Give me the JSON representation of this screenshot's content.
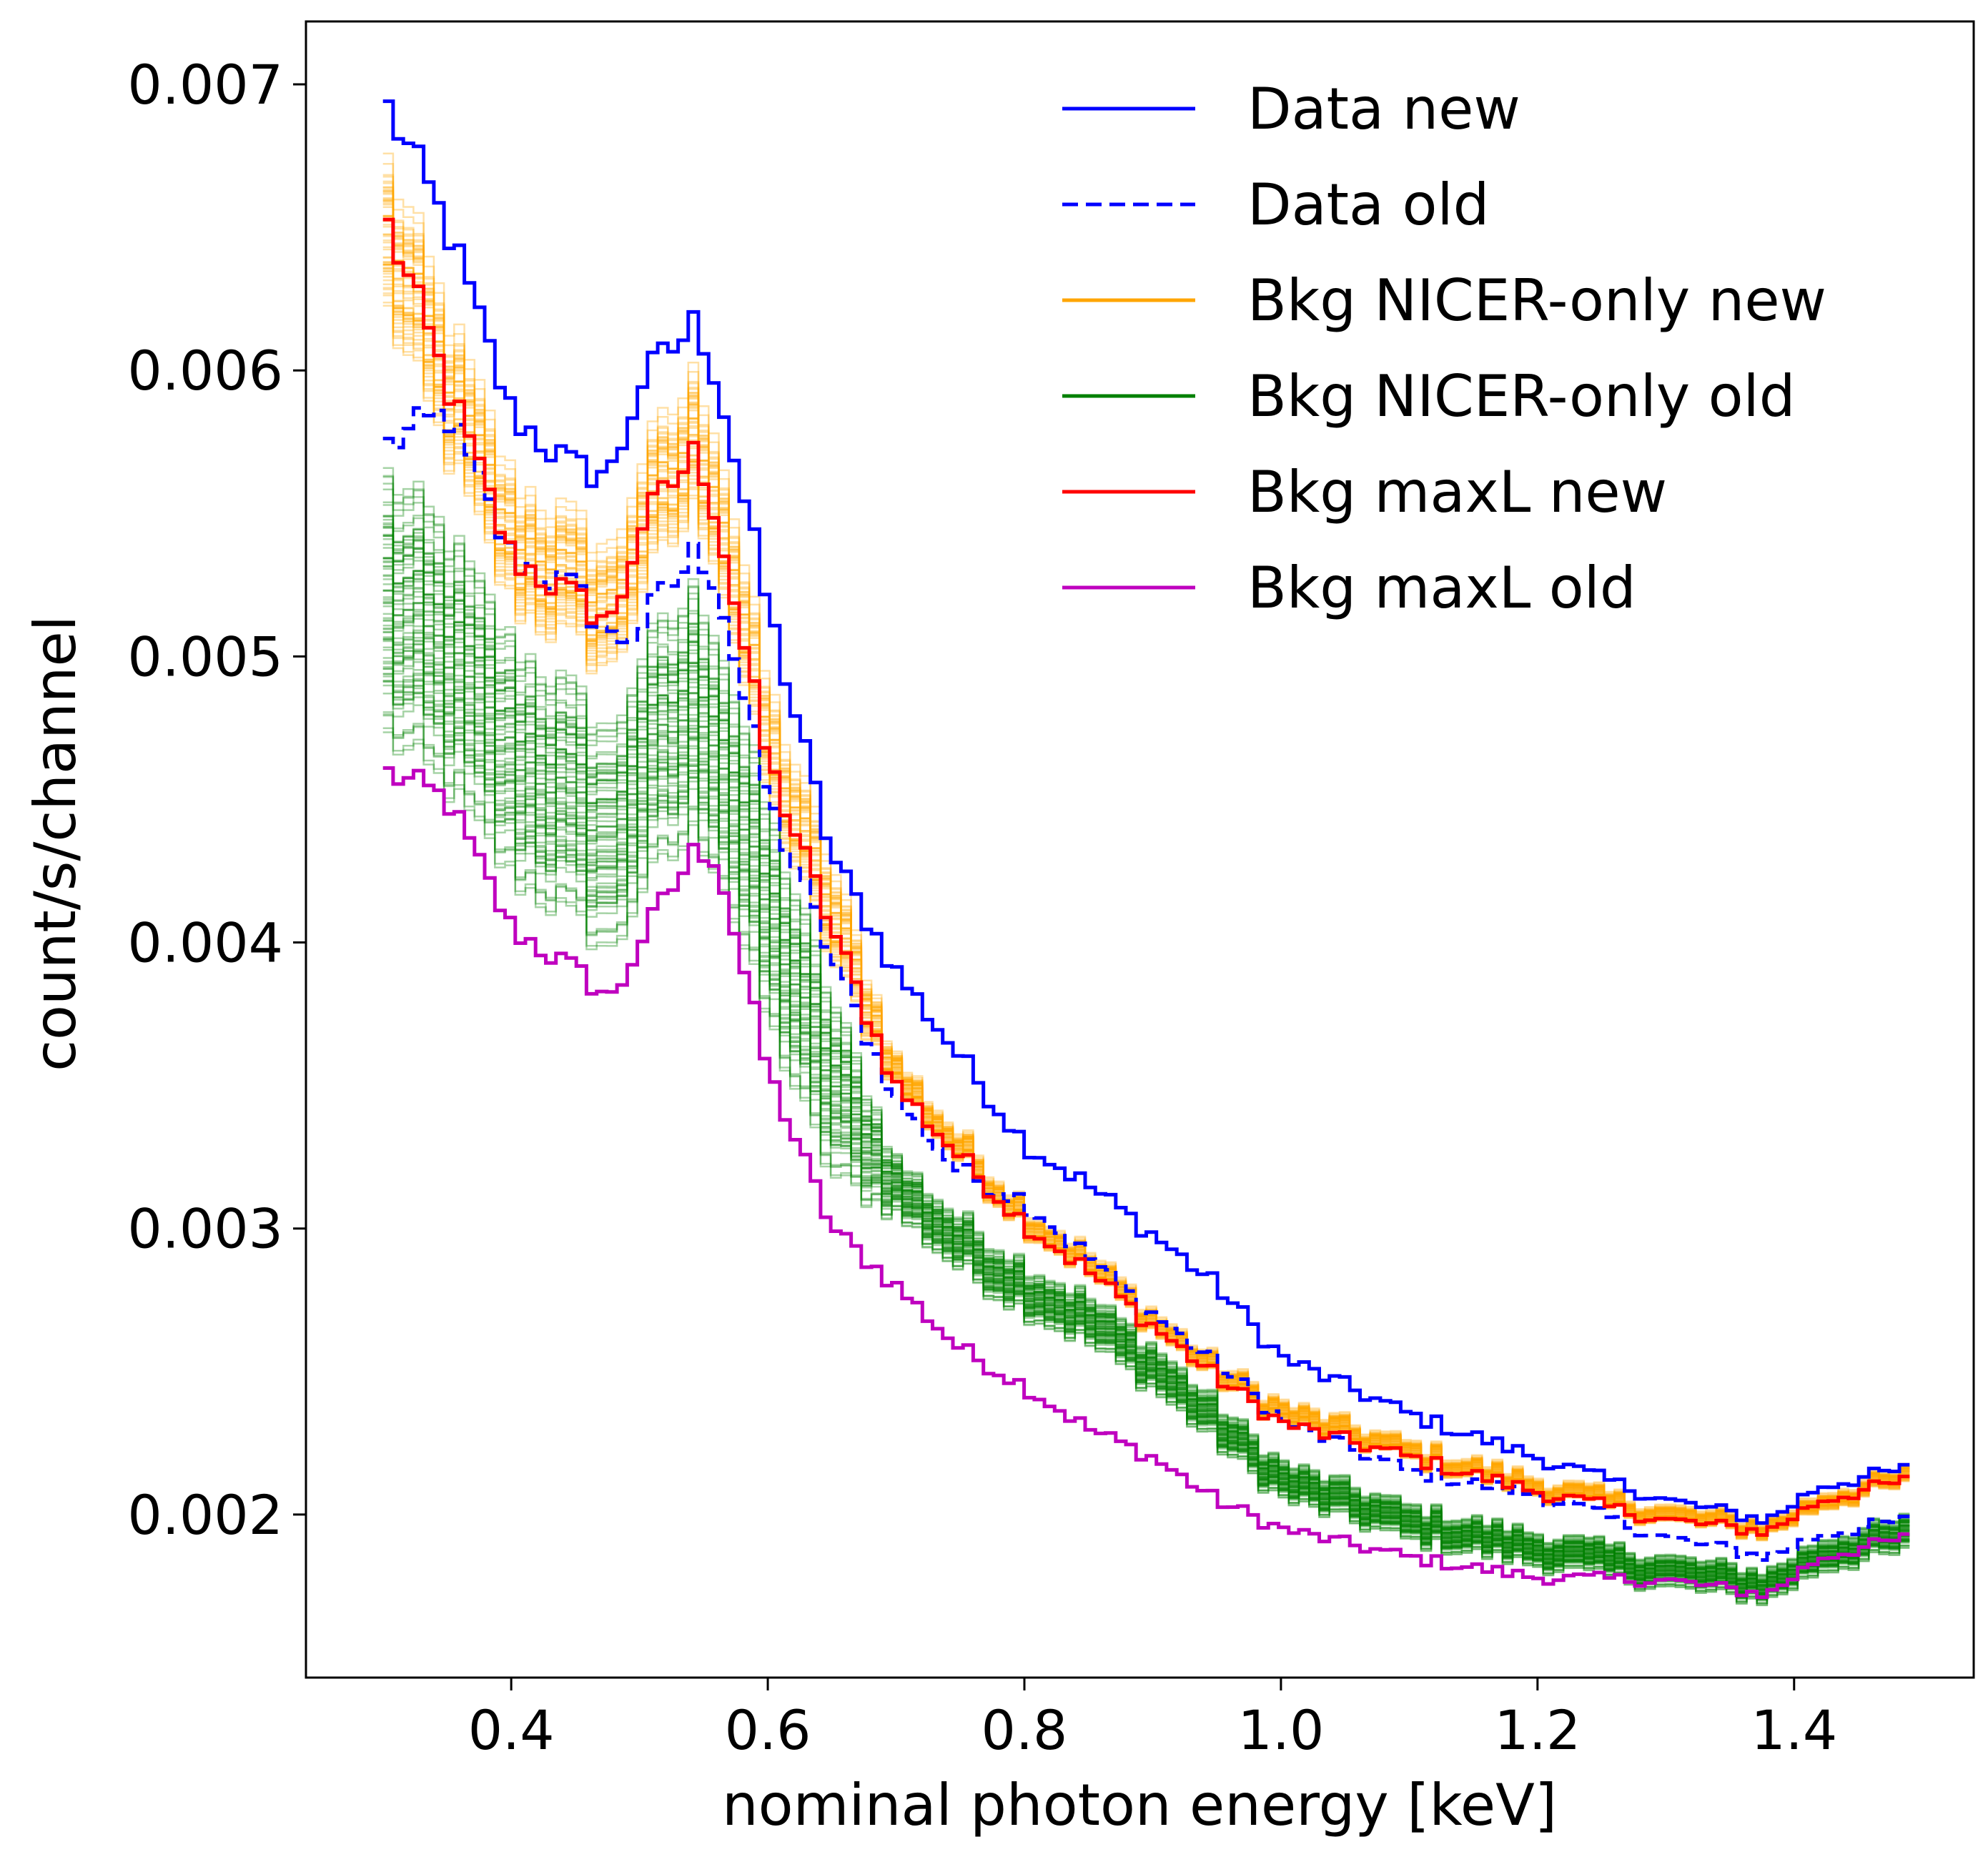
{
  "chart_data": {
    "type": "line",
    "step": true,
    "title": "",
    "xlabel": "nominal photon energy [keV]",
    "ylabel": "count/s/channel",
    "xlim": [
      0.24,
      1.54
    ],
    "ylim": [
      0.00143,
      0.00722
    ],
    "xticks": [
      0.4,
      0.6,
      0.8,
      1.0,
      1.2,
      1.4
    ],
    "xtick_labels": [
      "0.4",
      "0.6",
      "0.8",
      "1.0",
      "1.2",
      "1.4"
    ],
    "yticks": [
      0.002,
      0.003,
      0.004,
      0.005,
      0.006,
      0.007
    ],
    "ytick_labels": [
      "0.002",
      "0.003",
      "0.004",
      "0.005",
      "0.006",
      "0.007"
    ],
    "grid": false,
    "legend_position": "top-right",
    "x_anchor": [
      0.3,
      0.35,
      0.4,
      0.45,
      0.48,
      0.5,
      0.545,
      0.56,
      0.6,
      0.65,
      0.7,
      0.75,
      0.8,
      0.85,
      0.9,
      0.95,
      1.0,
      1.1,
      1.2,
      1.3,
      1.38,
      1.42,
      1.49
    ],
    "series": [
      {
        "name": "Data new",
        "color": "#0000ff",
        "style": "solid",
        "y_anchor": [
          0.00695,
          0.0065,
          0.00585,
          0.00565,
          0.00565,
          0.00595,
          0.00617,
          0.00598,
          0.00517,
          0.0043,
          0.0039,
          0.0036,
          0.0033,
          0.00315,
          0.00298,
          0.0028,
          0.00255,
          0.00235,
          0.0022,
          0.00205,
          0.00198,
          0.0021,
          0.00216
        ]
      },
      {
        "name": "Data old",
        "color": "#0000ff",
        "style": "dashed",
        "y_anchor": [
          0.00573,
          0.00585,
          0.00535,
          0.00523,
          0.00505,
          0.0051,
          0.00537,
          0.00527,
          0.0045,
          0.00395,
          0.00345,
          0.0032,
          0.0031,
          0.0029,
          0.0027,
          0.00253,
          0.00233,
          0.00215,
          0.00207,
          0.00192,
          0.00185,
          0.00193,
          0.00198
        ]
      },
      {
        "name": "Bkg NICER-only new",
        "color": "#ffa500",
        "style": "solid",
        "y_anchor": [
          0.0065,
          0.00595,
          0.0054,
          0.00525,
          0.00515,
          0.00545,
          0.00575,
          0.00558,
          0.0047,
          0.0041,
          0.00355,
          0.00328,
          0.00305,
          0.00288,
          0.00268,
          0.0025,
          0.00236,
          0.00222,
          0.0021,
          0.002,
          0.00195,
          0.00205,
          0.00213
        ]
      },
      {
        "name": "Bkg NICER-only old",
        "color": "#008000",
        "style": "solid",
        "y_anchor": [
          0.0052,
          0.005,
          0.00465,
          0.00448,
          0.00435,
          0.0046,
          0.00482,
          0.0047,
          0.0041,
          0.0035,
          0.00315,
          0.00295,
          0.0028,
          0.00268,
          0.00252,
          0.00232,
          0.00212,
          0.00197,
          0.00188,
          0.0018,
          0.00175,
          0.00186,
          0.00193
        ]
      },
      {
        "name": "Bkg maxL new",
        "color": "#ff0000",
        "style": "solid",
        "y_anchor": [
          0.00655,
          0.00595,
          0.00535,
          0.0052,
          0.00512,
          0.00545,
          0.00572,
          0.0055,
          0.00463,
          0.00405,
          0.0035,
          0.00325,
          0.00302,
          0.00285,
          0.00266,
          0.00248,
          0.00232,
          0.0022,
          0.00208,
          0.00198,
          0.00194,
          0.00205,
          0.00212
        ]
      },
      {
        "name": "Bkg maxL old",
        "color": "#bf00bf",
        "style": "solid",
        "y_anchor": [
          0.0046,
          0.0045,
          0.00405,
          0.0039,
          0.0038,
          0.004,
          0.00433,
          0.0043,
          0.00355,
          0.003,
          0.0028,
          0.00258,
          0.00245,
          0.0023,
          0.0022,
          0.00205,
          0.00195,
          0.00185,
          0.00178,
          0.00177,
          0.00172,
          0.00185,
          0.00192
        ]
      }
    ],
    "ensembles": [
      {
        "name": "Bkg NICER-only new samples",
        "color": "#ffa500",
        "of_series": "Bkg NICER-only new",
        "count": 60,
        "spread_rel": 0.05
      },
      {
        "name": "Bkg NICER-only old samples",
        "color": "#008000",
        "of_series": "Bkg NICER-only old",
        "count": 80,
        "spread_rel": 0.1
      }
    ]
  }
}
